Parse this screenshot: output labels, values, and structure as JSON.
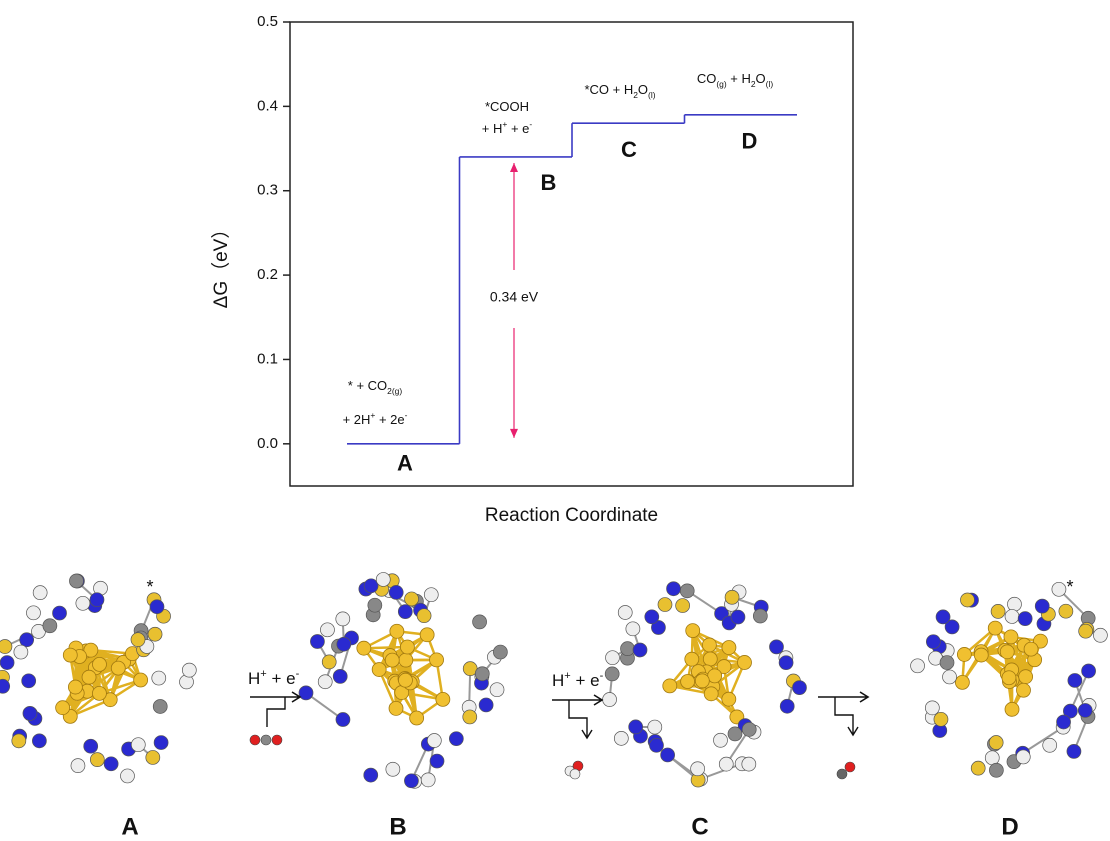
{
  "chart_data": {
    "type": "energy-profile",
    "ylabel": "ΔG（eV）",
    "xlabel": "Reaction Coordinate",
    "ylim": [
      -0.05,
      0.5
    ],
    "yticks": [
      {
        "value": 0,
        "label": "0.0"
      },
      0.1,
      0.2,
      0.3,
      0.4,
      0.5
    ],
    "color": "#3b3bc4",
    "categories": [
      "A",
      "B",
      "C",
      "D"
    ],
    "values": [
      0,
      0.34,
      0.38,
      0.39
    ],
    "state_labels": [
      [
        [
          "* + CO",
          {
            "sub": "2(g)"
          }
        ],
        [
          "+ 2H",
          {
            "sup": "+"
          },
          " + 2e",
          {
            "sup": "-"
          }
        ]
      ],
      [
        [
          "*COOH"
        ],
        [
          "+ H",
          {
            "sup": "+"
          },
          " + e",
          {
            "sup": "-"
          }
        ]
      ],
      [
        [
          "*CO + H",
          {
            "sub": "2"
          },
          "O",
          {
            "sub": "(l)"
          }
        ]
      ],
      [
        [
          "CO",
          {
            "sub": "(g)"
          },
          " + H",
          {
            "sub": "2"
          },
          "O",
          {
            "sub": "(l)"
          }
        ]
      ]
    ],
    "annotation": {
      "text": "0.34 eV",
      "from": 0,
      "to": 0.34,
      "color": "#e8206e"
    }
  },
  "scheme": {
    "labels": [
      "A",
      "B",
      "C",
      "D"
    ],
    "steps": [
      [
        "H",
        {
          "sup": "+"
        },
        " + e",
        {
          "sup": "-"
        }
      ],
      [
        "H",
        {
          "sup": "+"
        },
        " + e",
        {
          "sup": "-"
        }
      ]
    ],
    "marker": "*"
  }
}
